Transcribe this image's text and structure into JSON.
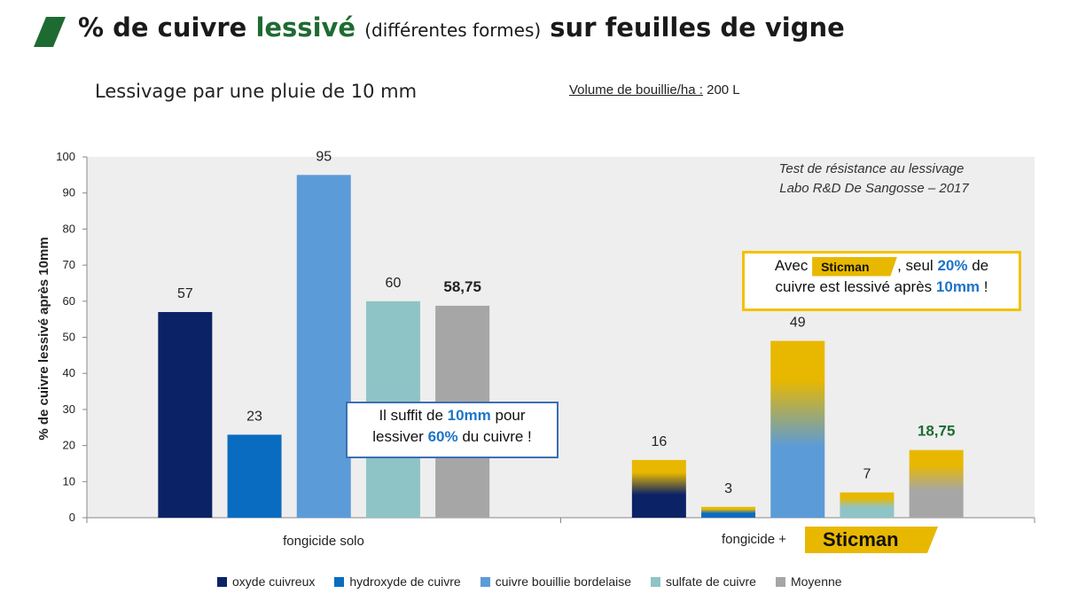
{
  "header": {
    "title_prefix": "% de cuivre",
    "title_highlight": "lessivé",
    "title_paren": "(différentes formes)",
    "title_suffix": "sur feuilles de vigne",
    "subtitle": "Lessivage par une pluie de 10 mm",
    "volume_label": "Volume de bouillie/ha :",
    "volume_value": "200 L"
  },
  "colors": {
    "oxyde": "#0b2366",
    "hydroxyde": "#0a6cc1",
    "bouillie": "#5b9bd8",
    "sulfate": "#8fc4c6",
    "moyenne": "#a6a6a6",
    "sticman": "#e8b800",
    "plot_bg": "#eeeeee"
  },
  "annotation": {
    "line1": "Test de résistance au lessivage",
    "line2": "Labo R&D De Sangosse – 2017"
  },
  "callout1": {
    "t1": "Il suffit de",
    "h1": "10mm",
    "t2": "pour",
    "t3": "lessiver",
    "h2": "60%",
    "t4": "du cuivre !"
  },
  "callout2": {
    "t1": "Avec",
    "logo": "Sticman",
    "t2": ", seul",
    "h1": "20%",
    "t3": "de",
    "t4": "cuivre est lessivé après",
    "h2": "10mm",
    "t5": "!"
  },
  "group2": {
    "prefix": "fongicide +",
    "logo": "Sticman"
  },
  "chart_data": {
    "type": "bar",
    "ylabel": "% de cuivre lessivé après 10mm",
    "xlabel": "",
    "ylim": [
      0,
      100
    ],
    "yticks": [
      0,
      10,
      20,
      30,
      40,
      50,
      60,
      70,
      80,
      90,
      100
    ],
    "grid": false,
    "legend_position": "bottom",
    "categories": [
      "fongicide solo",
      "fongicide + Sticman"
    ],
    "series": [
      {
        "name": "oxyde cuivreux",
        "values": [
          57,
          16
        ],
        "labels": [
          "57",
          "16"
        ]
      },
      {
        "name": "hydroxyde de cuivre",
        "values": [
          23,
          3
        ],
        "labels": [
          "23",
          "3"
        ]
      },
      {
        "name": "cuivre bouillie bordelaise",
        "values": [
          95,
          49
        ],
        "labels": [
          "95",
          "49"
        ]
      },
      {
        "name": "sulfate de cuivre",
        "values": [
          60,
          7
        ],
        "labels": [
          "60",
          "7"
        ]
      },
      {
        "name": "Moyenne",
        "values": [
          58.75,
          18.75
        ],
        "labels": [
          "58,75",
          "18,75"
        ]
      }
    ]
  }
}
